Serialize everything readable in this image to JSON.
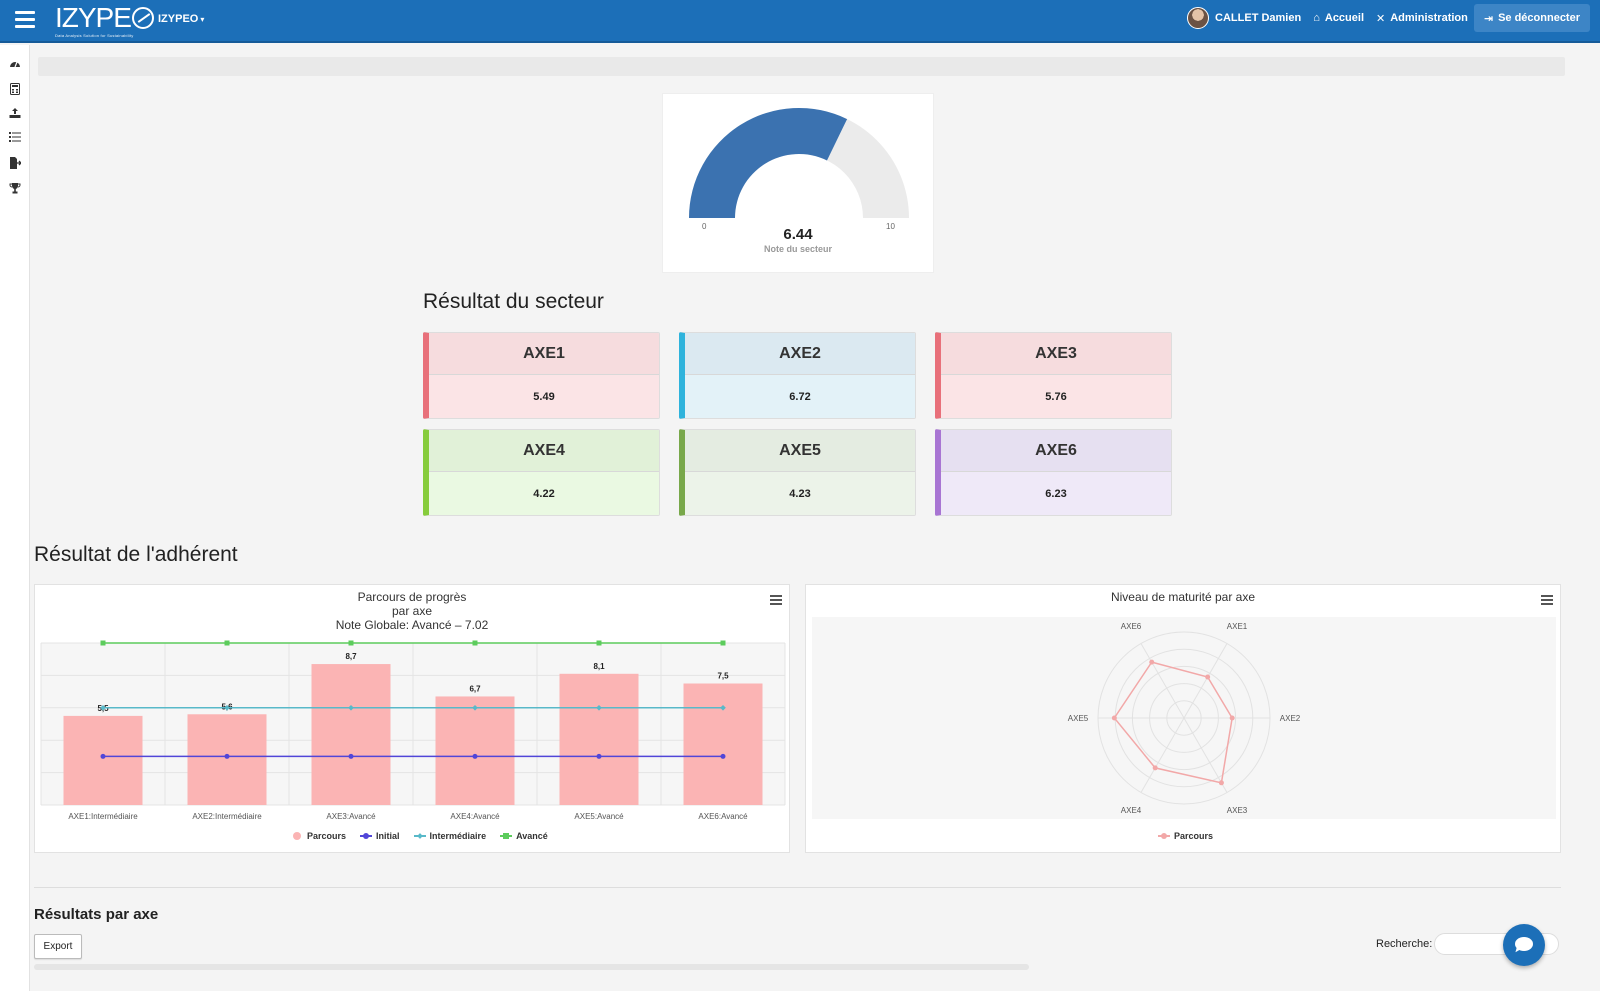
{
  "header": {
    "logo": "IZYPE",
    "logo_tagline": "Data Analysis Solution for Sustainability",
    "brand_menu": "IZYPEO",
    "user_name": "CALLET Damien",
    "home_label": "Accueil",
    "admin_label": "Administration",
    "logout_label": "Se déconnecter"
  },
  "sidebar": {
    "items": [
      "dashboard-icon",
      "calculator-icon",
      "upload-icon",
      "list-icon",
      "export-icon",
      "trophy-icon"
    ]
  },
  "gauge": {
    "value": 6.44,
    "value_label": "6.44",
    "min": "0",
    "max": "10",
    "label": "Note du secteur",
    "fill_color": "#3b72b0",
    "track_color": "#ebebeb"
  },
  "sector": {
    "title": "Résultat du secteur",
    "axes": [
      {
        "name": "AXE1",
        "value": "5.49",
        "accent": "#e8707a",
        "head_bg": "#f6dcde",
        "body_bg": "#fbe4e6"
      },
      {
        "name": "AXE2",
        "value": "6.72",
        "accent": "#2eb3dc",
        "head_bg": "#dbe9f1",
        "body_bg": "#e3f2f8"
      },
      {
        "name": "AXE3",
        "value": "5.76",
        "accent": "#e8707a",
        "head_bg": "#f6dcde",
        "body_bg": "#fbe4e6"
      },
      {
        "name": "AXE4",
        "value": "4.22",
        "accent": "#86cc3c",
        "head_bg": "#e1f1d8",
        "body_bg": "#eaf9e2"
      },
      {
        "name": "AXE5",
        "value": "4.23",
        "accent": "#78a84a",
        "head_bg": "#e4ece1",
        "body_bg": "#ecf3e9"
      },
      {
        "name": "AXE6",
        "value": "6.23",
        "accent": "#a875d3",
        "head_bg": "#e6e0f1",
        "body_bg": "#efe9f8"
      }
    ]
  },
  "adherent": {
    "title": "Résultat de l'adhérent"
  },
  "chart_data": [
    {
      "type": "bar",
      "title": "Parcours de progrès",
      "subtitle": "par axe",
      "subtitle2": "Note Globale: Avancé – 7.02",
      "categories": [
        "AXE1:Intermédiaire",
        "AXE2:Intermédiaire",
        "AXE3:Avancé",
        "AXE4:Avancé",
        "AXE5:Avancé",
        "AXE6:Avancé"
      ],
      "ylim": [
        0,
        10
      ],
      "grid": true,
      "legend_position": "bottom",
      "series": [
        {
          "name": "Parcours",
          "type": "bar",
          "values": [
            5.5,
            5.6,
            8.7,
            6.7,
            8.1,
            7.5
          ],
          "labels": [
            "5,5",
            "5,6",
            "8,7",
            "6,7",
            "8,1",
            "7,5"
          ],
          "color": "#fbb4b4"
        },
        {
          "name": "Initial",
          "type": "line",
          "values": [
            3,
            3,
            3,
            3,
            3,
            3
          ],
          "color": "#5146d8"
        },
        {
          "name": "Intermédiaire",
          "type": "line",
          "values": [
            6,
            6,
            6,
            6,
            6,
            6
          ],
          "color": "#58b9c9"
        },
        {
          "name": "Avancé",
          "type": "line",
          "values": [
            10,
            10,
            10,
            10,
            10,
            10
          ],
          "color": "#5ccc5c"
        }
      ]
    },
    {
      "type": "radar",
      "title": "Niveau de maturité par axe",
      "categories": [
        "AXE1",
        "AXE2",
        "AXE3",
        "AXE4",
        "AXE5",
        "AXE6"
      ],
      "rmax": 10,
      "legend_position": "bottom",
      "series": [
        {
          "name": "Parcours",
          "values": [
            5.5,
            5.6,
            8.7,
            6.7,
            8.1,
            7.5
          ],
          "color": "#f2a8a8"
        }
      ]
    }
  ],
  "results": {
    "title": "Résultats par axe",
    "export_label": "Export",
    "search_label": "Recherche:",
    "search_value": ""
  }
}
